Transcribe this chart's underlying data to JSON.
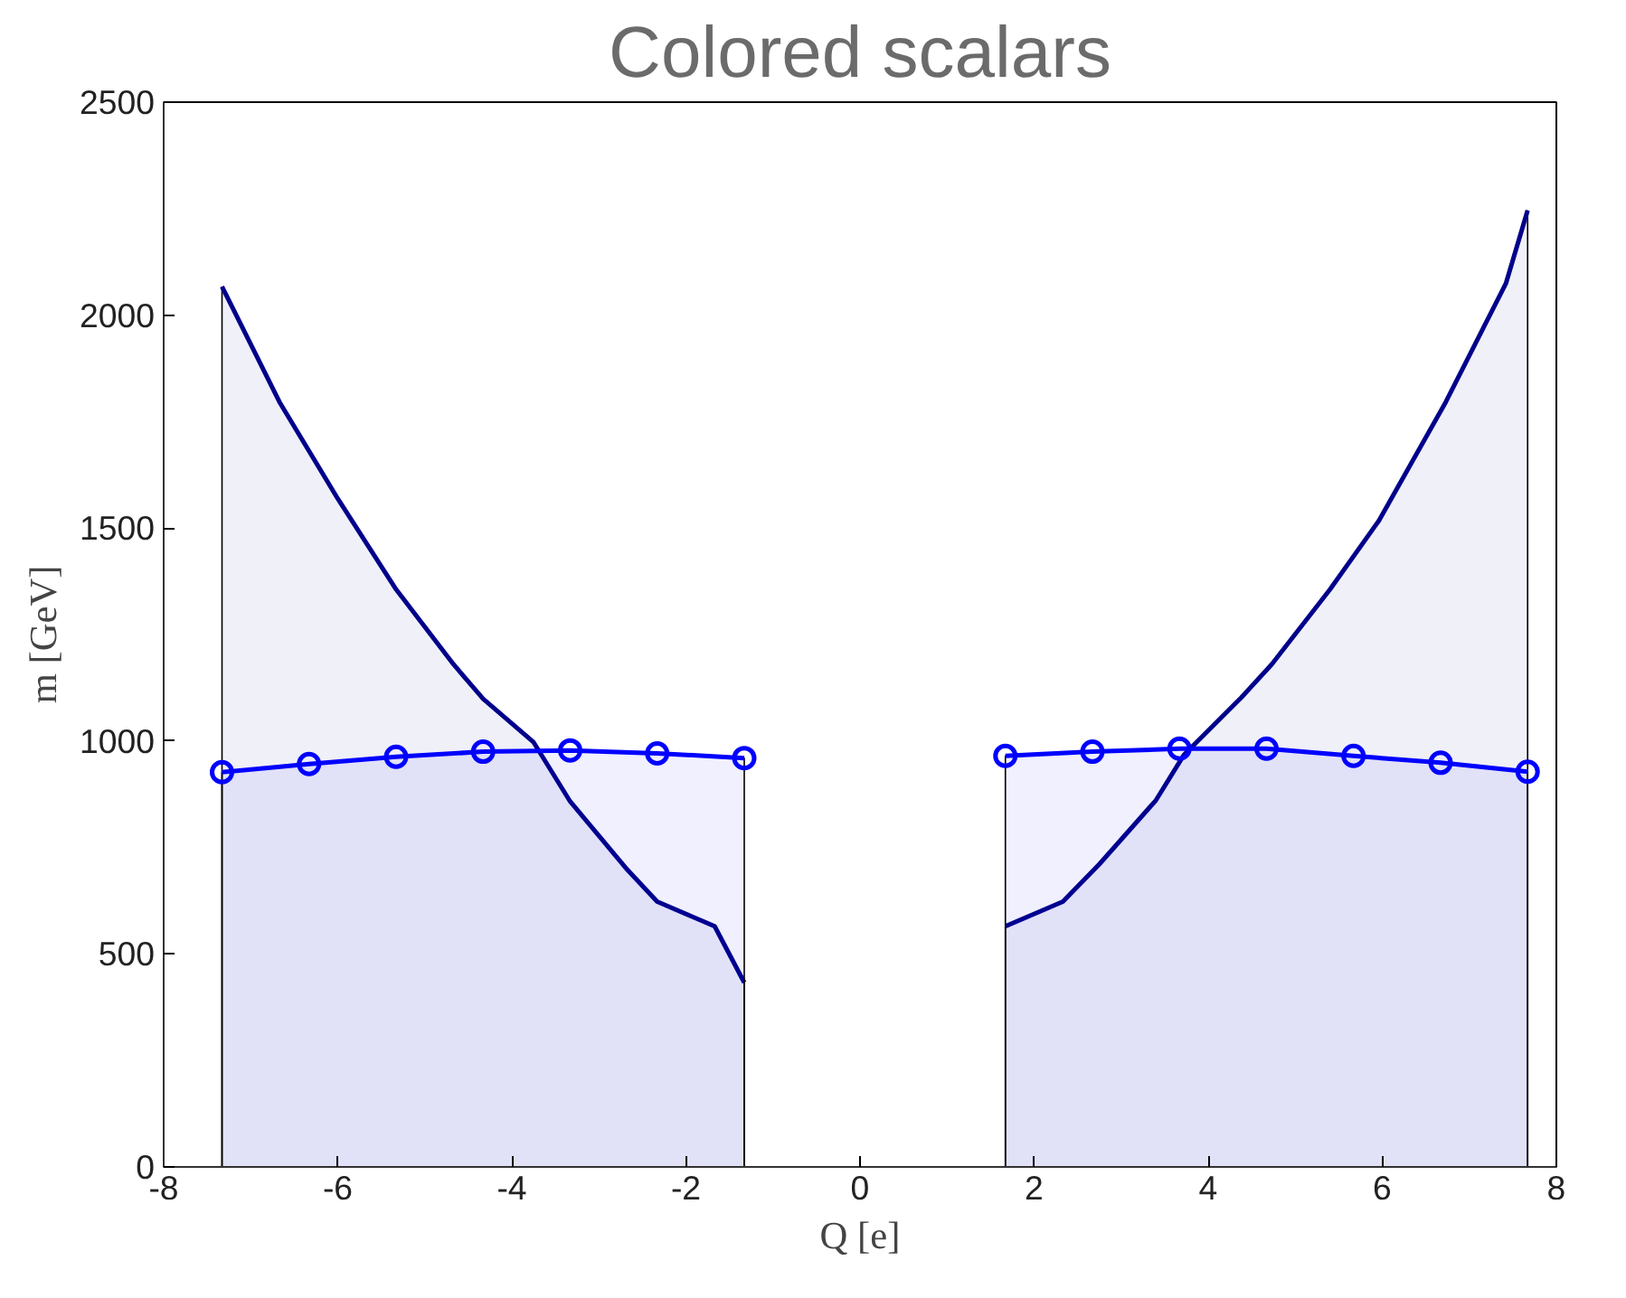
{
  "chart_data": {
    "type": "area",
    "title": "Colored scalars",
    "xlabel": "Q [e]",
    "ylabel": "m [GeV]",
    "xlim": [
      -8,
      8
    ],
    "ylim": [
      0,
      2500
    ],
    "xticks": [
      -8,
      -6,
      -4,
      -2,
      0,
      2,
      4,
      6,
      8
    ],
    "yticks": [
      0,
      500,
      1000,
      1500,
      2000,
      2500
    ],
    "grid": false,
    "series": [
      {
        "color": "#00008b",
        "marker": "none",
        "x": [
          -7.33,
          -6.67,
          -6,
          -5.33,
          -4.67,
          -4.33,
          -3.75,
          -3.33,
          -2.67,
          -2.33,
          -1.67,
          -1.33
        ],
        "values": [
          2067,
          1796,
          1569,
          1356,
          1180,
          1099,
          997,
          858,
          697,
          623,
          565,
          433
        ]
      },
      {
        "color": "#0000ff",
        "marker": "circle",
        "x": [
          -7.33,
          -6.33,
          -5.33,
          -4.33,
          -3.33,
          -2.33,
          -1.33
        ],
        "values": [
          927,
          946,
          963,
          975,
          978,
          971,
          960
        ]
      },
      {
        "color": "#00008b",
        "marker": "none",
        "x": [
          1.67,
          2.33,
          2.75,
          3.4,
          3.72,
          4.38,
          4.73,
          5.4,
          5.96,
          6.73,
          7.42,
          7.67
        ],
        "values": [
          565,
          623,
          711,
          861,
          967,
          1102,
          1180,
          1356,
          1517,
          1796,
          2074,
          2246
        ]
      },
      {
        "color": "#0000ff",
        "marker": "circle",
        "x": [
          1.67,
          2.67,
          3.67,
          4.67,
          5.67,
          6.67,
          7.67
        ],
        "values": [
          965,
          975,
          982,
          982,
          965,
          949,
          928
        ]
      }
    ]
  }
}
